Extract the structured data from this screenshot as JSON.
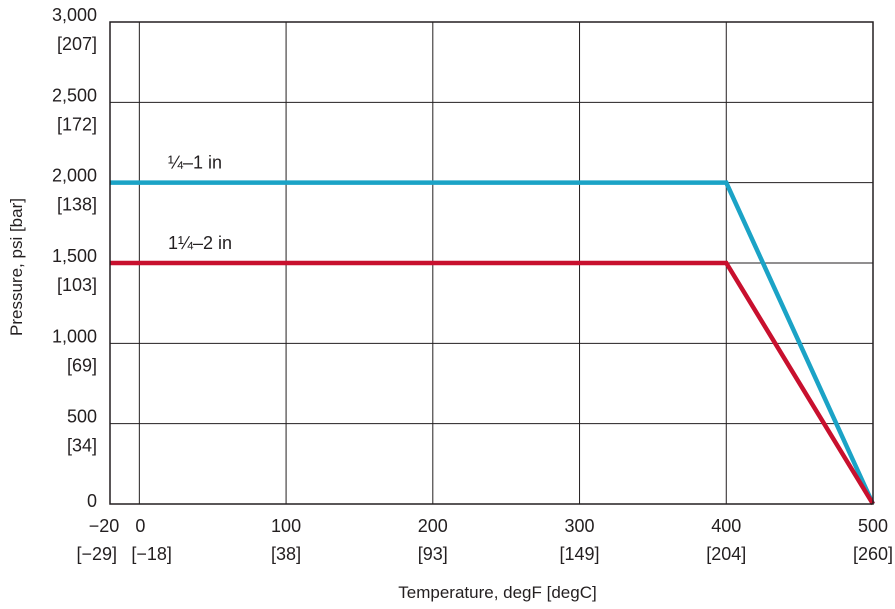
{
  "chart_data": {
    "type": "line",
    "xlabel": "Temperature, degF [degC]",
    "ylabel": "Pressure, psi [bar]",
    "xlim": [
      -20,
      500
    ],
    "ylim": [
      0,
      3000
    ],
    "grid": true,
    "x_ticks": [
      {
        "value": -20,
        "line1": "−20",
        "line2": "[−29]"
      },
      {
        "value": 0,
        "line1": "0",
        "line2": "[−18]"
      },
      {
        "value": 100,
        "line1": "100",
        "line2": "[38]"
      },
      {
        "value": 200,
        "line1": "200",
        "line2": "[93]"
      },
      {
        "value": 300,
        "line1": "300",
        "line2": "[149]"
      },
      {
        "value": 400,
        "line1": "400",
        "line2": "[204]"
      },
      {
        "value": 500,
        "line1": "500",
        "line2": "[260]"
      }
    ],
    "y_ticks": [
      {
        "value": 0,
        "line1": "0",
        "line2": ""
      },
      {
        "value": 500,
        "line1": "500",
        "line2": "[34]"
      },
      {
        "value": 1000,
        "line1": "1,000",
        "line2": "[69]"
      },
      {
        "value": 1500,
        "line1": "1,500",
        "line2": "[103]"
      },
      {
        "value": 2000,
        "line1": "2,000",
        "line2": "[138]"
      },
      {
        "value": 2500,
        "line1": "2,500",
        "line2": "[172]"
      },
      {
        "value": 3000,
        "line1": "3,000",
        "line2": "[207]"
      }
    ],
    "series": [
      {
        "name": "¼–1 in",
        "color": "#1ba3c6",
        "points": [
          [
            -20,
            2000
          ],
          [
            400,
            2000
          ],
          [
            500,
            0
          ]
        ]
      },
      {
        "name": "1¼–2 in",
        "color": "#c8102e",
        "points": [
          [
            -20,
            1500
          ],
          [
            400,
            1500
          ],
          [
            500,
            0
          ]
        ]
      }
    ]
  }
}
